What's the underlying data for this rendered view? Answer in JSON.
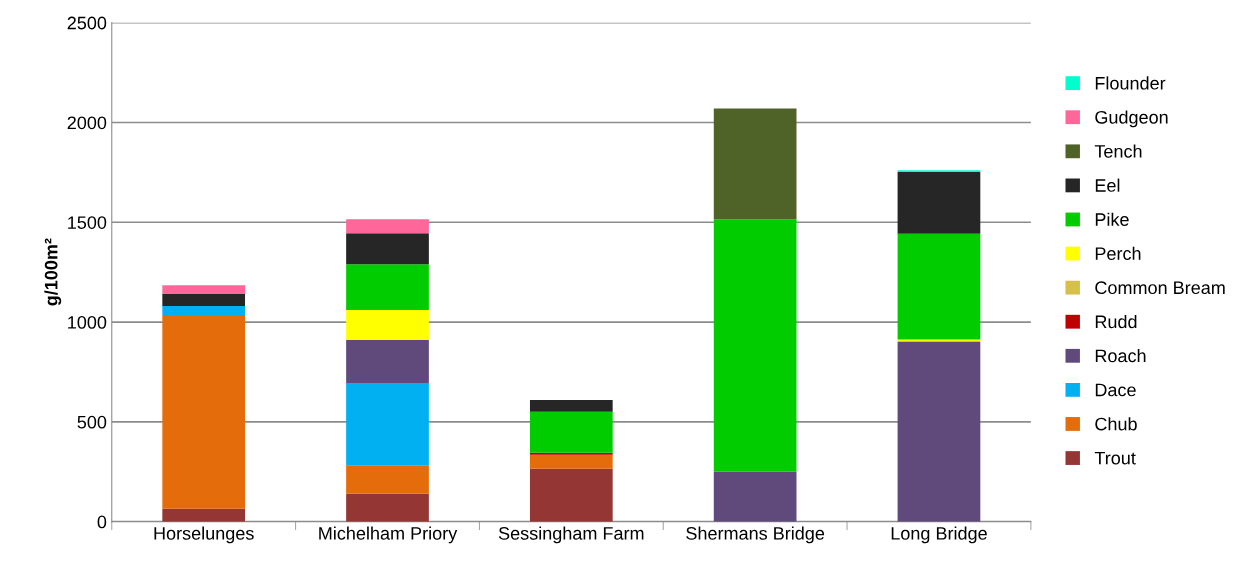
{
  "chart_data": {
    "type": "bar",
    "stacked": true,
    "ylabel": "g/100m²",
    "categories": [
      "Horselunges",
      "Michelham Priory",
      "Sessingham Farm",
      "Shermans Bridge",
      "Long Bridge"
    ],
    "series": [
      {
        "name": "Trout",
        "color": "#943634",
        "values": [
          65,
          140,
          265,
          null,
          null
        ]
      },
      {
        "name": "Chub",
        "color": "#e46c0a",
        "values": [
          970,
          140,
          70,
          null,
          null
        ]
      },
      {
        "name": "Dace",
        "color": "#00b0f0",
        "values": [
          45,
          415,
          null,
          null,
          null
        ]
      },
      {
        "name": "Roach",
        "color": "#604a7b",
        "values": [
          null,
          215,
          null,
          250,
          900
        ]
      },
      {
        "name": "Rudd",
        "color": "#c00000",
        "values": [
          null,
          null,
          10,
          null,
          null
        ]
      },
      {
        "name": "Common Bream",
        "color": "#d6c04a",
        "values": [
          null,
          null,
          null,
          null,
          5
        ]
      },
      {
        "name": "Perch",
        "color": "#ffff00",
        "values": [
          null,
          150,
          null,
          null,
          7
        ]
      },
      {
        "name": "Pike",
        "color": "#00cc00",
        "values": [
          null,
          230,
          205,
          1265,
          530
        ]
      },
      {
        "name": "Eel",
        "color": "#262626",
        "values": [
          60,
          155,
          60,
          null,
          310
        ]
      },
      {
        "name": "Tench",
        "color": "#4f6228",
        "values": [
          null,
          null,
          null,
          555,
          null
        ]
      },
      {
        "name": "Gudgeon",
        "color": "#ff6699",
        "values": [
          45,
          70,
          null,
          null,
          null
        ]
      },
      {
        "name": "Flounder",
        "color": "#00ffcc",
        "values": [
          null,
          null,
          null,
          null,
          8
        ]
      }
    ],
    "ylim": [
      0,
      2500
    ],
    "yticks": [
      0,
      500,
      1000,
      1500,
      2000,
      2500
    ],
    "grid": "y",
    "legend": "right"
  }
}
